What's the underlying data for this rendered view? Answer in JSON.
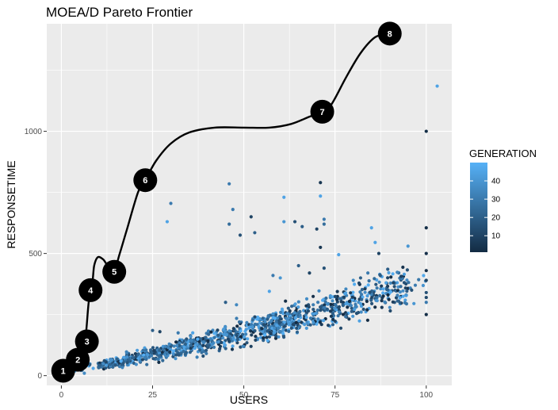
{
  "chart_data": {
    "type": "scatter",
    "title": "MOEA/D Pareto Frontier",
    "xlabel": "USERS",
    "ylabel": "RESPONSETIME",
    "xlim": [
      -4,
      107
    ],
    "ylim": [
      -40,
      1440
    ],
    "x_ticks": [
      0,
      25,
      50,
      75,
      100
    ],
    "y_ticks": [
      0,
      500,
      1000
    ],
    "grid": true,
    "legend": {
      "title": "GENERATION",
      "placement": "right",
      "type": "colorbar",
      "range": [
        1,
        50
      ],
      "ticks": [
        10,
        20,
        30,
        40
      ],
      "color_low": "#132b43",
      "color_high": "#56b1f7"
    },
    "outliers": [
      {
        "x": 100,
        "y": 1000,
        "g": 2
      },
      {
        "x": 103,
        "y": 1185,
        "g": 45
      },
      {
        "x": 100,
        "y": 605,
        "g": 2
      },
      {
        "x": 100,
        "y": 500,
        "g": 3
      },
      {
        "x": 100,
        "y": 430,
        "g": 3
      },
      {
        "x": 100,
        "y": 390,
        "g": 10
      },
      {
        "x": 100,
        "y": 340,
        "g": 15
      },
      {
        "x": 100,
        "y": 320,
        "g": 12
      },
      {
        "x": 100,
        "y": 300,
        "g": 30
      },
      {
        "x": 100,
        "y": 250,
        "g": 2
      },
      {
        "x": 46,
        "y": 785,
        "g": 30
      },
      {
        "x": 47,
        "y": 680,
        "g": 30
      },
      {
        "x": 46,
        "y": 620,
        "g": 25
      },
      {
        "x": 52,
        "y": 650,
        "g": 10
      },
      {
        "x": 49,
        "y": 575,
        "g": 15
      },
      {
        "x": 53,
        "y": 585,
        "g": 20
      },
      {
        "x": 30,
        "y": 705,
        "g": 30
      },
      {
        "x": 29,
        "y": 630,
        "g": 45
      },
      {
        "x": 61,
        "y": 730,
        "g": 45
      },
      {
        "x": 61,
        "y": 630,
        "g": 40
      },
      {
        "x": 64,
        "y": 630,
        "g": 15
      },
      {
        "x": 66,
        "y": 610,
        "g": 20
      },
      {
        "x": 70,
        "y": 600,
        "g": 10
      },
      {
        "x": 72,
        "y": 640,
        "g": 30
      },
      {
        "x": 72,
        "y": 620,
        "g": 25
      },
      {
        "x": 71,
        "y": 790,
        "g": 5
      },
      {
        "x": 71,
        "y": 735,
        "g": 45
      },
      {
        "x": 71,
        "y": 525,
        "g": 5
      },
      {
        "x": 76,
        "y": 495,
        "g": 45
      },
      {
        "x": 85,
        "y": 605,
        "g": 45
      },
      {
        "x": 86,
        "y": 545,
        "g": 45
      },
      {
        "x": 95,
        "y": 530,
        "g": 40
      },
      {
        "x": 87,
        "y": 500,
        "g": 10
      },
      {
        "x": 72,
        "y": 440,
        "g": 15
      },
      {
        "x": 68,
        "y": 420,
        "g": 10
      },
      {
        "x": 65,
        "y": 450,
        "g": 20
      },
      {
        "x": 58,
        "y": 410,
        "g": 30
      },
      {
        "x": 60,
        "y": 400,
        "g": 40
      },
      {
        "x": 57,
        "y": 345,
        "g": 45
      },
      {
        "x": 45,
        "y": 300,
        "g": 20
      },
      {
        "x": 48,
        "y": 290,
        "g": 35
      },
      {
        "x": 25,
        "y": 185,
        "g": 20
      },
      {
        "x": 27,
        "y": 180,
        "g": 10
      },
      {
        "x": 32,
        "y": 175,
        "g": 30
      },
      {
        "x": 36,
        "y": 175,
        "g": 45
      },
      {
        "x": 89,
        "y": 380,
        "g": 45
      },
      {
        "x": 91,
        "y": 380,
        "g": 10
      },
      {
        "x": 93,
        "y": 365,
        "g": 25
      },
      {
        "x": 97,
        "y": 370,
        "g": 30
      },
      {
        "x": 96,
        "y": 350,
        "g": 15
      },
      {
        "x": 80,
        "y": 390,
        "g": 35
      },
      {
        "x": 82,
        "y": 400,
        "g": 20
      },
      {
        "x": 84,
        "y": 420,
        "g": 30
      }
    ],
    "cloud": {
      "count": 1150,
      "x_min": 2,
      "x_max": 100,
      "seed": 7
    },
    "trend_line": [
      {
        "x": 0.5,
        "y": 20
      },
      {
        "x": 5,
        "y": 60
      },
      {
        "x": 6.5,
        "y": 140
      },
      {
        "x": 7.5,
        "y": 300
      },
      {
        "x": 8.5,
        "y": 380
      },
      {
        "x": 9,
        "y": 450
      },
      {
        "x": 10,
        "y": 485
      },
      {
        "x": 11.5,
        "y": 475
      },
      {
        "x": 12.5,
        "y": 455
      },
      {
        "x": 14.5,
        "y": 435
      },
      {
        "x": 16,
        "y": 500
      },
      {
        "x": 18,
        "y": 600
      },
      {
        "x": 21,
        "y": 750
      },
      {
        "x": 23,
        "y": 800
      },
      {
        "x": 26,
        "y": 880
      },
      {
        "x": 30,
        "y": 950
      },
      {
        "x": 35,
        "y": 995
      },
      {
        "x": 42,
        "y": 1015
      },
      {
        "x": 50,
        "y": 1015
      },
      {
        "x": 57,
        "y": 1015
      },
      {
        "x": 63,
        "y": 1030
      },
      {
        "x": 68,
        "y": 1060
      },
      {
        "x": 71.5,
        "y": 1080
      },
      {
        "x": 74,
        "y": 1110
      },
      {
        "x": 78,
        "y": 1220
      },
      {
        "x": 82,
        "y": 1320
      },
      {
        "x": 86,
        "y": 1385
      },
      {
        "x": 90,
        "y": 1400
      }
    ],
    "markers": [
      {
        "label": "1",
        "x": 0.5,
        "y": 20
      },
      {
        "label": "2",
        "x": 4.5,
        "y": 65
      },
      {
        "label": "3",
        "x": 7,
        "y": 140
      },
      {
        "label": "4",
        "x": 8,
        "y": 350
      },
      {
        "label": "5",
        "x": 14.5,
        "y": 425
      },
      {
        "label": "6",
        "x": 23,
        "y": 800
      },
      {
        "label": "7",
        "x": 71.5,
        "y": 1080
      },
      {
        "label": "8",
        "x": 90,
        "y": 1400
      }
    ]
  }
}
